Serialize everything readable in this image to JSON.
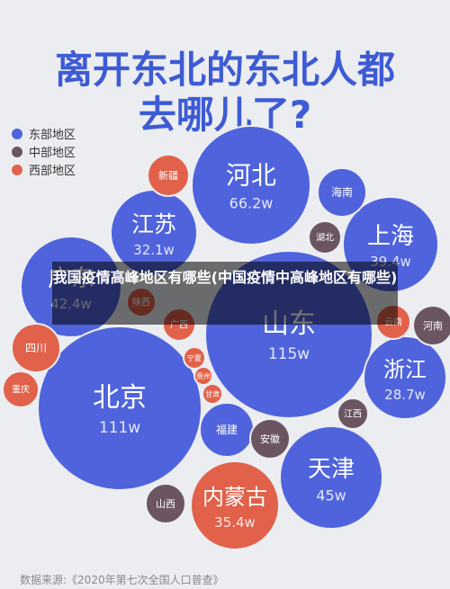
{
  "colors": {
    "east": "#4f63dc",
    "central": "#6a5560",
    "west": "#e1614a"
  },
  "title_lines": [
    "离开东北的东北人都",
    "去哪儿了?"
  ],
  "overlay_text": "我国疫情高峰地区有哪些(中国疫情中高峰地区有哪些)",
  "footer": "数据来源:《2020年第七次全国人口普查》",
  "chart_data": {
    "type": "bubble",
    "title": "离开东北的东北人都去哪儿了?",
    "legend": {
      "placement": "top-left",
      "items": [
        {
          "label": "东部地区",
          "group": "east"
        },
        {
          "label": "中部地区",
          "group": "central"
        },
        {
          "label": "西部地区",
          "group": "west"
        }
      ]
    },
    "bubbles": [
      {
        "name": "河北",
        "value": "66.2w",
        "group": "east"
      },
      {
        "name": "江苏",
        "value": "32.1w",
        "group": "east"
      },
      {
        "name": "上海",
        "value": "39.4w",
        "group": "east"
      },
      {
        "name": "广东",
        "value": "42.4w",
        "group": "east"
      },
      {
        "name": "山东",
        "value": "115w",
        "group": "east"
      },
      {
        "name": "北京",
        "value": "111w",
        "group": "east"
      },
      {
        "name": "浙江",
        "value": "28.7w",
        "group": "east"
      },
      {
        "name": "天津",
        "value": "45w",
        "group": "east"
      },
      {
        "name": "内蒙古",
        "value": "35.4w",
        "group": "west"
      },
      {
        "name": "海南",
        "value": "",
        "group": "east"
      },
      {
        "name": "福建",
        "value": "",
        "group": "east"
      },
      {
        "name": "湖北",
        "value": "",
        "group": "central"
      },
      {
        "name": "河南",
        "value": "",
        "group": "central"
      },
      {
        "name": "江西",
        "value": "",
        "group": "central"
      },
      {
        "name": "安徽",
        "value": "",
        "group": "central"
      },
      {
        "name": "山西",
        "value": "",
        "group": "central"
      },
      {
        "name": "新疆",
        "value": "",
        "group": "west"
      },
      {
        "name": "陕西",
        "value": "",
        "group": "west"
      },
      {
        "name": "云南",
        "value": "",
        "group": "west"
      },
      {
        "name": "四川",
        "value": "",
        "group": "west"
      },
      {
        "name": "重庆",
        "value": "",
        "group": "west"
      },
      {
        "name": "广西",
        "value": "",
        "group": "west"
      },
      {
        "name": "宁夏",
        "value": "",
        "group": "west"
      },
      {
        "name": "贵州",
        "value": "",
        "group": "west"
      },
      {
        "name": "甘肃",
        "value": "",
        "group": "west"
      }
    ]
  }
}
